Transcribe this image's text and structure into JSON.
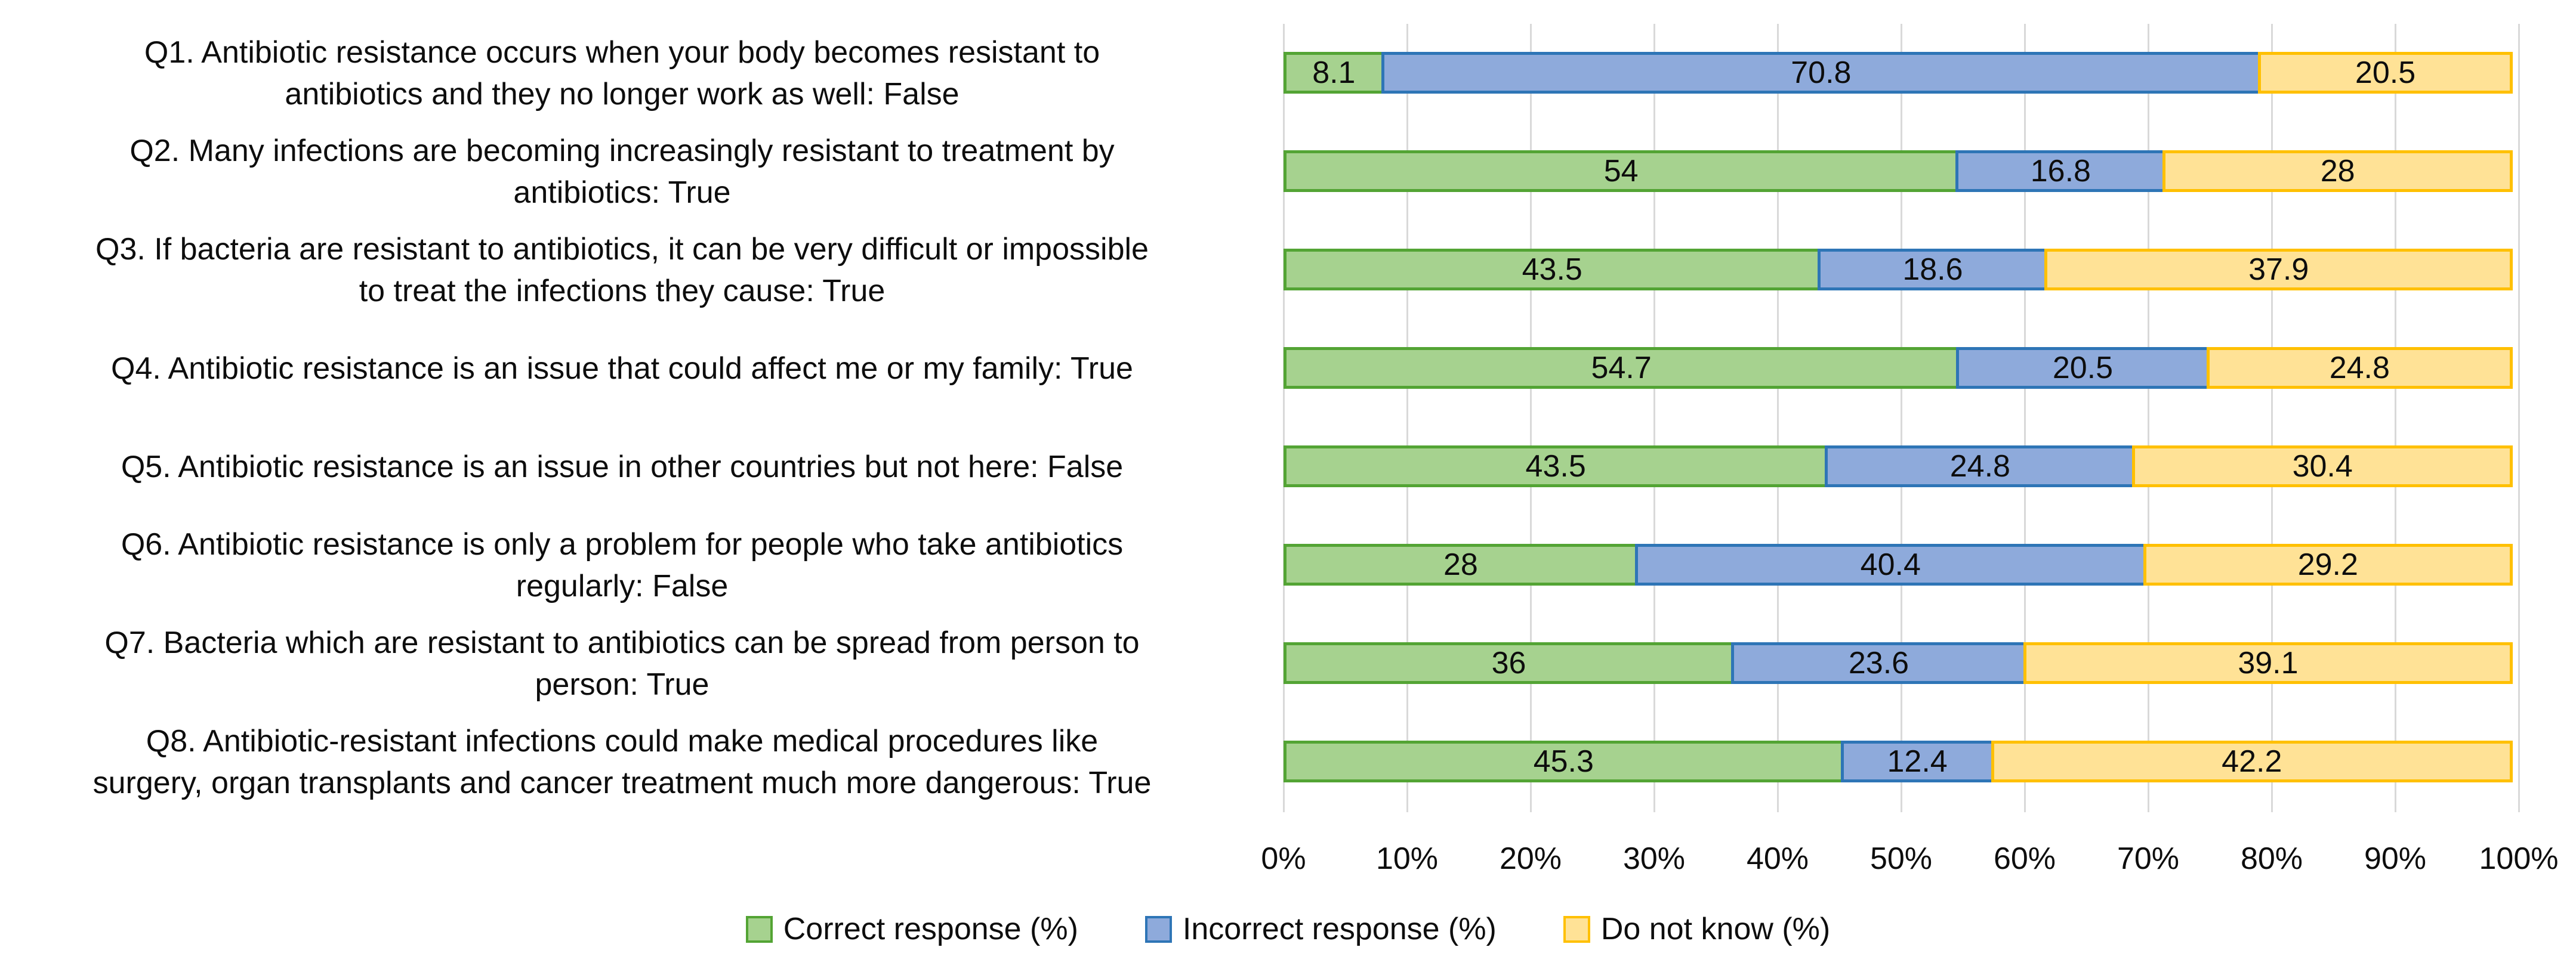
{
  "chart_data": {
    "type": "bar",
    "subtype": "horizontal-100pct-stacked",
    "title": "",
    "xlabel": "",
    "ylabel": "",
    "xlim": [
      0,
      100
    ],
    "grid": true,
    "legend_position": "bottom",
    "x_ticks": [
      "0%",
      "10%",
      "20%",
      "30%",
      "40%",
      "50%",
      "60%",
      "70%",
      "80%",
      "90%",
      "100%"
    ],
    "categories": [
      "Q1. Antibiotic resistance occurs when your body becomes resistant to\nantibiotics and they no longer work as well: False",
      "Q2. Many infections are becoming increasingly resistant to treatment by\nantibiotics: True",
      "Q3. If bacteria are resistant to antibiotics, it can be very difficult or impossible\nto treat the infections they cause: True",
      "Q4. Antibiotic resistance is an issue that could affect me or my family: True",
      "Q5. Antibiotic resistance is an issue in other countries but not here: False",
      "Q6. Antibiotic resistance is only a problem for people who take antibiotics\nregularly: False",
      "Q7. Bacteria which are resistant to antibiotics can be spread from person to\nperson: True",
      "Q8. Antibiotic-resistant infections could make medical procedures like\nsurgery, organ transplants and cancer treatment much more dangerous: True"
    ],
    "series": [
      {
        "name": "Correct response (%)",
        "fill": "#A6D28F",
        "border": "#53A434",
        "values": [
          8.1,
          54,
          43.5,
          54.7,
          43.5,
          28,
          36,
          45.3
        ]
      },
      {
        "name": "Incorrect response (%)",
        "fill": "#8EAADB",
        "border": "#2E75B6",
        "values": [
          70.8,
          16.8,
          18.6,
          20.5,
          24.8,
          40.4,
          23.6,
          12.4
        ]
      },
      {
        "name": "Do not know (%)",
        "fill": "#FFE296",
        "border": "#FFC000",
        "values": [
          20.5,
          28,
          37.9,
          24.8,
          30.4,
          29.2,
          39.1,
          42.2
        ]
      }
    ],
    "gridline_color": "#D9D9D9"
  },
  "layout_text": {}
}
